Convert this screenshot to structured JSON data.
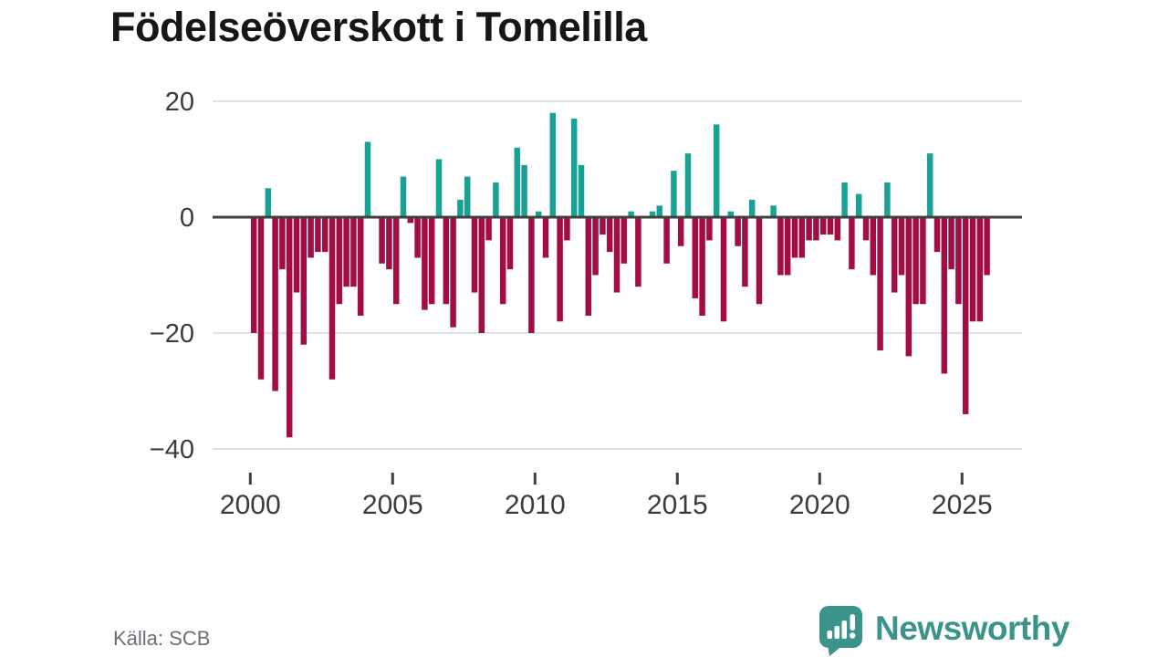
{
  "chart_data": {
    "type": "bar",
    "title": "Födelseöverskott i Tomelilla",
    "frequency": "quarterly",
    "start": "2000-Q1",
    "end": "2025-Q4",
    "x_ticks": [
      2000,
      2005,
      2010,
      2015,
      2020,
      2025
    ],
    "y_ticks": [
      20,
      0,
      -20,
      -40
    ],
    "ylim": [
      -42,
      22
    ],
    "grid": "horizontal-only",
    "legend": "none",
    "positive_color": "#17a295",
    "negative_color": "#a30d45",
    "values": [
      -20,
      -28,
      5,
      -30,
      -9,
      -38,
      -13,
      -22,
      -7,
      -6,
      -6,
      -28,
      -15,
      -12,
      -12,
      -17,
      13,
      0,
      -8,
      -9,
      -15,
      7,
      -1,
      -7,
      -16,
      -15,
      10,
      -15,
      -19,
      3,
      7,
      -13,
      -20,
      -4,
      6,
      -15,
      -9,
      12,
      9,
      -20,
      1,
      -7,
      18,
      -18,
      -4,
      17,
      9,
      -17,
      -10,
      -3,
      -6,
      -13,
      -8,
      1,
      -12,
      0,
      1,
      2,
      -8,
      8,
      -5,
      11,
      -14,
      -17,
      -4,
      16,
      -18,
      1,
      -5,
      -12,
      3,
      -15,
      0,
      2,
      -10,
      -10,
      -7,
      -7,
      -4,
      -4,
      -3,
      -3,
      -4,
      6,
      -9,
      4,
      -4,
      -10,
      -23,
      6,
      -13,
      -10,
      -24,
      -15,
      -15,
      11,
      -6,
      -27,
      -9,
      -15,
      -34,
      -18,
      -18,
      -10
    ]
  },
  "source": {
    "label": "Källa: SCB"
  },
  "branding": {
    "wordmark": "Newsworthy"
  },
  "colors": {
    "positive": "#17a295",
    "negative": "#a30d45",
    "axis_line": "#3f3f3f",
    "gridline": "#e2e2e2",
    "tick_text": "#3b3b3b",
    "source_text": "#6e6e76",
    "brand_teal": "#3b948c"
  }
}
